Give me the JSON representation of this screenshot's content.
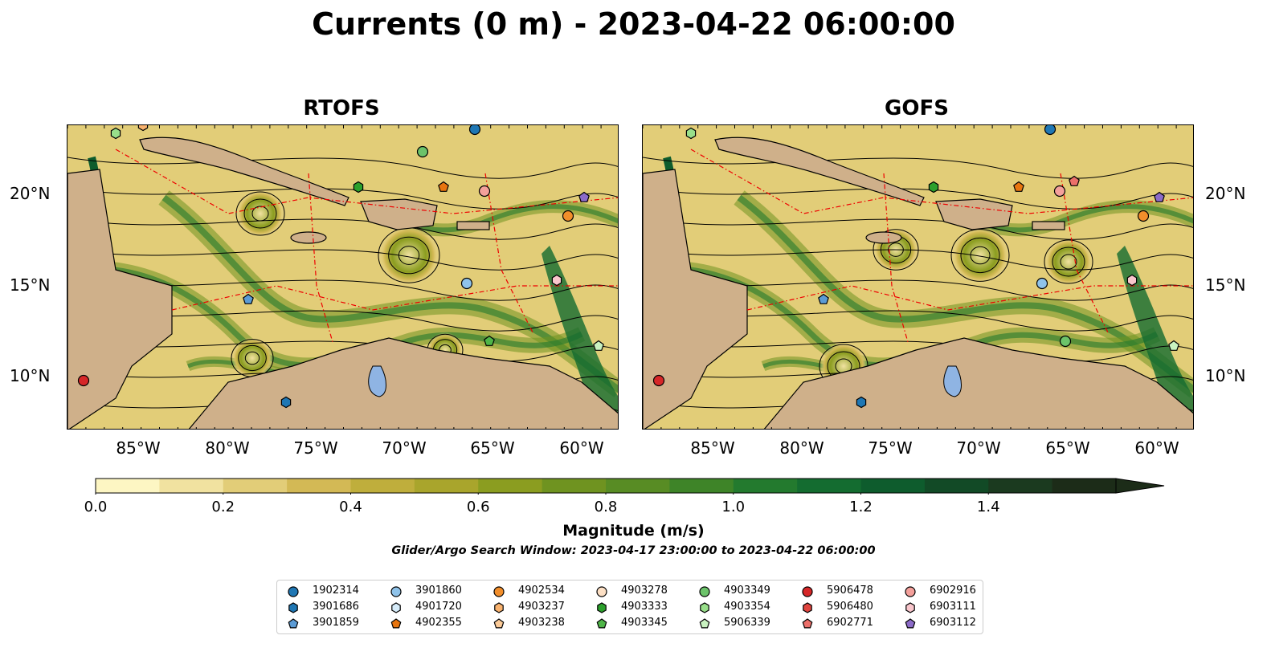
{
  "title": "Currents (0 m) - 2023-04-22 06:00:00",
  "panels": [
    {
      "title": "RTOFS"
    },
    {
      "title": "GOFS"
    }
  ],
  "lat_labels": [
    "20°N",
    "15°N",
    "10°N"
  ],
  "lon_labels": [
    "85°W",
    "80°W",
    "75°W",
    "70°W",
    "65°W",
    "60°W"
  ],
  "colorbar": {
    "label": "Magnitude (m/s)",
    "ticks": [
      "0.0",
      "0.2",
      "0.4",
      "0.6",
      "0.8",
      "1.0",
      "1.2",
      "1.4"
    ],
    "range": [
      0,
      1.6
    ],
    "colors": [
      "#fdf6c3",
      "#f1e2a0",
      "#e2cd78",
      "#d3b955",
      "#bfae3c",
      "#a9a52c",
      "#8b9d20",
      "#6f9320",
      "#588c24",
      "#3e8428",
      "#237a2e",
      "#146c30",
      "#0e5c2d",
      "#124a26",
      "#1b3a1f",
      "#1c2c18"
    ]
  },
  "search_window": "Glider/Argo Search Window: 2023-04-17 23:00:00 to 2023-04-22 06:00:00",
  "legend": {
    "items": [
      {
        "id": "1902314",
        "marker": "circle",
        "color": "#1f77b4"
      },
      {
        "id": "3901686",
        "marker": "hexagon",
        "color": "#1f77b4"
      },
      {
        "id": "3901859",
        "marker": "pentagon",
        "color": "#5b9bd5"
      },
      {
        "id": "3901860",
        "marker": "circle",
        "color": "#8fc3ea"
      },
      {
        "id": "4901720",
        "marker": "hexagon",
        "color": "#d6ecfa"
      },
      {
        "id": "4902355",
        "marker": "pentagon",
        "color": "#e8750f"
      },
      {
        "id": "4902534",
        "marker": "circle",
        "color": "#f28e2b"
      },
      {
        "id": "4903237",
        "marker": "hexagon",
        "color": "#f9b26e"
      },
      {
        "id": "4903238",
        "marker": "pentagon",
        "color": "#fccb98"
      },
      {
        "id": "4903278",
        "marker": "circle",
        "color": "#fde0c5"
      },
      {
        "id": "4903333",
        "marker": "hexagon",
        "color": "#2ca02c"
      },
      {
        "id": "4903345",
        "marker": "pentagon",
        "color": "#4fb548"
      },
      {
        "id": "4903349",
        "marker": "circle",
        "color": "#6cc36a"
      },
      {
        "id": "4903354",
        "marker": "hexagon",
        "color": "#98df8a"
      },
      {
        "id": "5906339",
        "marker": "pentagon",
        "color": "#c9f2c0"
      },
      {
        "id": "5906478",
        "marker": "circle",
        "color": "#d62728"
      },
      {
        "id": "5906480",
        "marker": "hexagon",
        "color": "#e0453f"
      },
      {
        "id": "6902771",
        "marker": "pentagon",
        "color": "#ec6f6a"
      },
      {
        "id": "6902916",
        "marker": "circle",
        "color": "#f4a09b"
      },
      {
        "id": "6903111",
        "marker": "hexagon",
        "color": "#f9c6cc"
      },
      {
        "id": "6903112",
        "marker": "pentagon",
        "color": "#8c6bc8"
      }
    ]
  }
}
